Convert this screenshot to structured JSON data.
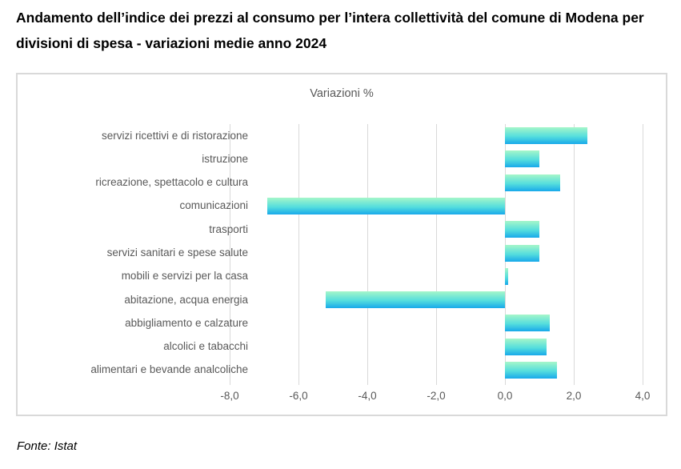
{
  "page": {
    "title": "Andamento dell’indice dei prezzi al consumo per l’intera collettività del comune di Modena per divisioni di spesa - variazioni medie anno 2024",
    "source": "Fonte: Istat"
  },
  "chart_data": {
    "type": "bar",
    "orientation": "horizontal",
    "title": "Variazioni %",
    "categories": [
      "servizi ricettivi e di ristorazione",
      "istruzione",
      "ricreazione, spettacolo e cultura",
      "comunicazioni",
      "trasporti",
      "servizi sanitari e spese salute",
      "mobili e servizi per la casa",
      "abitazione, acqua energia",
      "abbigliamento e calzature",
      "alcolici e tabacchi",
      "alimentari e bevande analcoliche"
    ],
    "values": [
      2.4,
      1.0,
      1.6,
      -6.9,
      1.0,
      1.0,
      0.1,
      -5.2,
      1.3,
      1.2,
      1.5
    ],
    "xlim": [
      -8.0,
      4.0
    ],
    "x_ticks": [
      -8,
      -6,
      -4,
      -2,
      0,
      2,
      4
    ],
    "x_tick_labels": [
      "-8,0",
      "-6,0",
      "-4,0",
      "-2,0",
      "0,0",
      "2,0",
      "4,0"
    ],
    "grid": true,
    "legend": false,
    "ylabel": "",
    "xlabel": "",
    "colors": {
      "bar_gradient_top": "#a5f6c9",
      "bar_gradient_mid": "#55dedd",
      "bar_gradient_bottom": "#18a9ea",
      "gridline": "#d9d9d9",
      "axis_text": "#595959",
      "chart_border": "#d9d9d9",
      "chart_title_text": "#595959"
    }
  }
}
